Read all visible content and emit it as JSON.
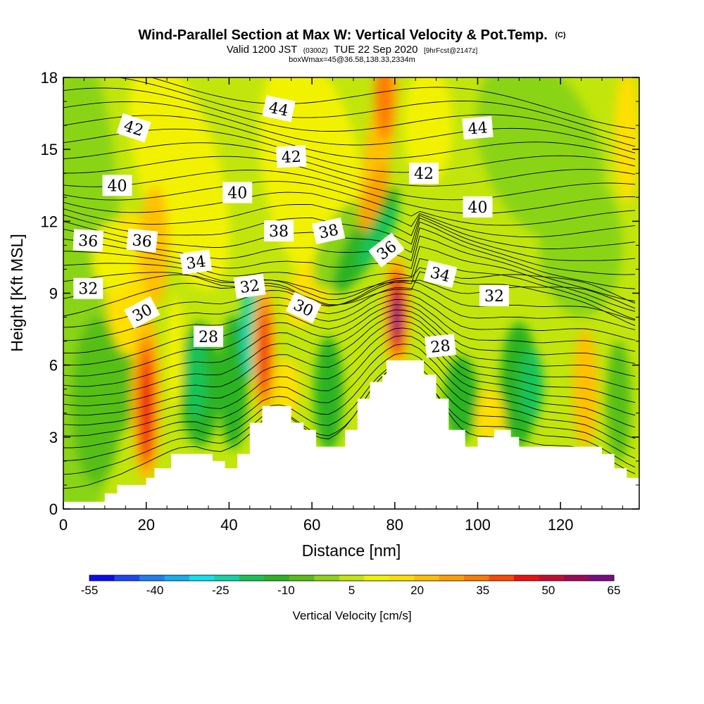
{
  "header": {
    "title": "Wind-Parallel Section at Max W: Vertical Velocity & Pot.Temp.",
    "title_mark": "(C)",
    "valid_prefix": "Valid 1200 JST",
    "valid_zulu": "(0300Z)",
    "valid_date": "TUE 22 Sep 2020",
    "forecast": "[9hrFcst@2147z]",
    "box_info": "boxWmax=45@36.58,138.33,2334m"
  },
  "chart_data": {
    "type": "heatmap",
    "xlabel": "Distance [nm]",
    "ylabel": "Height [Kft MSL]",
    "xlim": [
      0,
      139
    ],
    "ylim": [
      0,
      18
    ],
    "x_ticks": [
      0,
      20,
      40,
      60,
      80,
      100,
      120
    ],
    "y_ticks": [
      0,
      3,
      6,
      9,
      12,
      15,
      18
    ],
    "colorbar": {
      "title": "Vertical Velocity [cm/s]",
      "tick_labels": [
        "-55",
        "-40",
        "-25",
        "-10",
        "5",
        "20",
        "35",
        "50",
        "65"
      ],
      "colors": [
        "#0b0bf0",
        "#1b48f5",
        "#1f7df5",
        "#12b0f0",
        "#0fe2ee",
        "#10d4a8",
        "#17c458",
        "#2cb424",
        "#56bf16",
        "#8ad412",
        "#c2e60c",
        "#f2f200",
        "#ffdf00",
        "#ffc000",
        "#ffa000",
        "#ff7a00",
        "#ff4800",
        "#ee1010",
        "#c80a32",
        "#a0085c",
        "#7a0a86"
      ]
    },
    "terrain": [
      [
        0,
        0.3
      ],
      [
        10,
        0.3
      ],
      [
        10,
        0.65
      ],
      [
        13,
        0.65
      ],
      [
        13,
        1.0
      ],
      [
        20,
        1.0
      ],
      [
        20,
        1.3
      ],
      [
        22,
        1.3
      ],
      [
        22,
        1.7
      ],
      [
        26,
        1.7
      ],
      [
        26,
        2.3
      ],
      [
        36,
        2.3
      ],
      [
        36,
        2.0
      ],
      [
        39,
        2.0
      ],
      [
        39,
        1.7
      ],
      [
        42,
        1.7
      ],
      [
        42,
        2.3
      ],
      [
        45,
        2.3
      ],
      [
        45,
        3.6
      ],
      [
        48,
        3.6
      ],
      [
        48,
        4.3
      ],
      [
        55,
        4.3
      ],
      [
        55,
        3.6
      ],
      [
        58,
        3.6
      ],
      [
        58,
        3.3
      ],
      [
        61,
        3.3
      ],
      [
        61,
        2.6
      ],
      [
        68,
        2.6
      ],
      [
        68,
        3.3
      ],
      [
        71,
        3.3
      ],
      [
        71,
        4.6
      ],
      [
        74,
        4.6
      ],
      [
        74,
        5.3
      ],
      [
        77,
        5.3
      ],
      [
        77,
        5.6
      ],
      [
        78,
        5.6
      ],
      [
        78,
        6.2
      ],
      [
        87,
        6.2
      ],
      [
        87,
        5.6
      ],
      [
        90,
        5.6
      ],
      [
        90,
        4.6
      ],
      [
        93,
        4.6
      ],
      [
        93,
        3.3
      ],
      [
        97,
        3.3
      ],
      [
        97,
        2.6
      ],
      [
        100,
        2.6
      ],
      [
        100,
        3.0
      ],
      [
        104,
        3.0
      ],
      [
        104,
        3.3
      ],
      [
        108,
        3.3
      ],
      [
        108,
        3.0
      ],
      [
        110,
        3.0
      ],
      [
        110,
        2.6
      ],
      [
        130,
        2.6
      ],
      [
        130,
        2.3
      ],
      [
        133,
        2.3
      ],
      [
        133,
        1.7
      ],
      [
        136,
        1.7
      ],
      [
        136,
        1.3
      ],
      [
        139,
        1.3
      ]
    ],
    "contour_labels": [
      {
        "text": "44",
        "x": 52,
        "y": 16.7,
        "angle": 12
      },
      {
        "text": "42",
        "x": 17,
        "y": 15.9,
        "angle": 18
      },
      {
        "text": "44",
        "x": 100,
        "y": 15.9,
        "angle": -5
      },
      {
        "text": "42",
        "x": 55,
        "y": 14.7,
        "angle": -3
      },
      {
        "text": "42",
        "x": 87,
        "y": 14.0,
        "angle": 0
      },
      {
        "text": "40",
        "x": 13,
        "y": 13.5,
        "angle": 0
      },
      {
        "text": "40",
        "x": 42,
        "y": 13.2,
        "angle": 0
      },
      {
        "text": "40",
        "x": 100,
        "y": 12.6,
        "angle": 0
      },
      {
        "text": "36",
        "x": 6,
        "y": 11.2,
        "angle": 3
      },
      {
        "text": "36",
        "x": 19,
        "y": 11.2,
        "angle": 6
      },
      {
        "text": "38",
        "x": 52,
        "y": 11.6,
        "angle": 0
      },
      {
        "text": "38",
        "x": 64,
        "y": 11.6,
        "angle": -12
      },
      {
        "text": "36",
        "x": 78,
        "y": 10.8,
        "angle": -38
      },
      {
        "text": "34",
        "x": 32,
        "y": 10.3,
        "angle": -8
      },
      {
        "text": "34",
        "x": 91,
        "y": 9.8,
        "angle": 14
      },
      {
        "text": "32",
        "x": 6,
        "y": 9.2,
        "angle": 0
      },
      {
        "text": "32",
        "x": 45,
        "y": 9.3,
        "angle": -8
      },
      {
        "text": "32",
        "x": 104,
        "y": 8.9,
        "angle": 0
      },
      {
        "text": "30",
        "x": 19,
        "y": 8.2,
        "angle": -28
      },
      {
        "text": "30",
        "x": 58,
        "y": 8.4,
        "angle": 25
      },
      {
        "text": "28",
        "x": 35,
        "y": 7.2,
        "angle": 0
      },
      {
        "text": "28",
        "x": 91,
        "y": 6.8,
        "angle": -6
      }
    ]
  }
}
